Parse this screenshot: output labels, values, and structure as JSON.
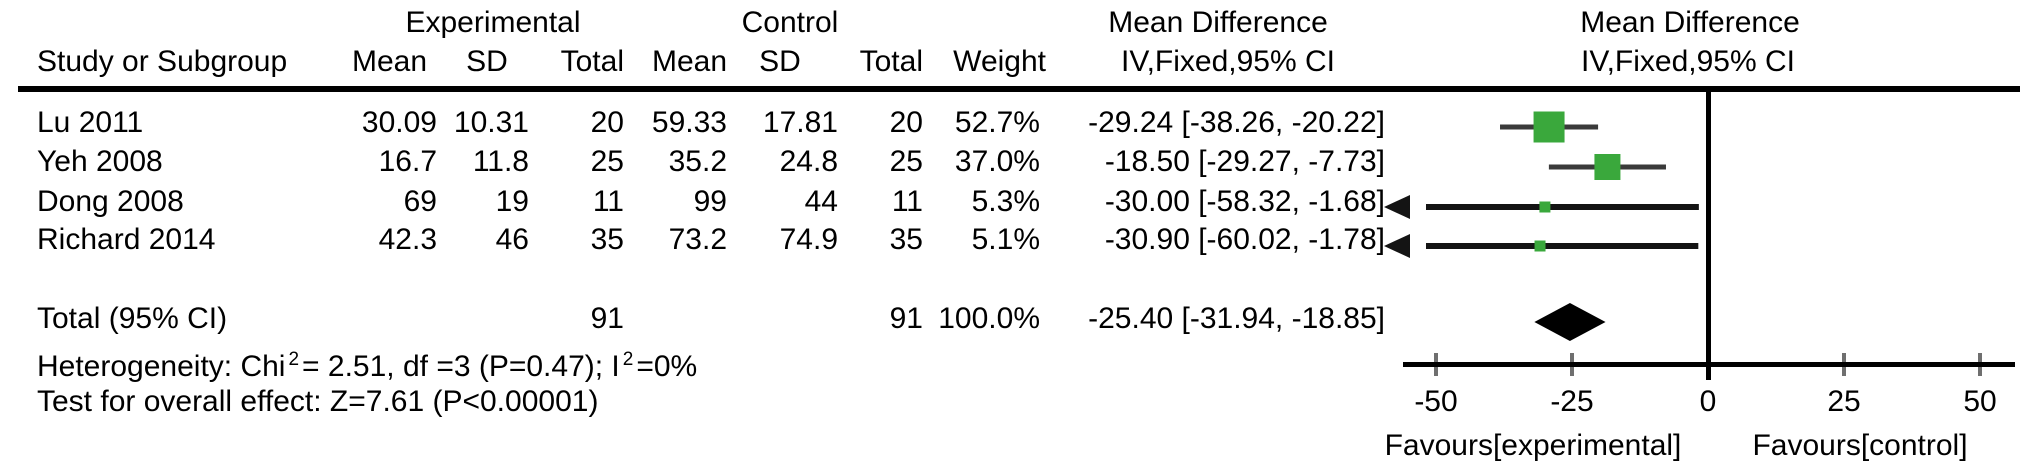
{
  "header": {
    "group_experimental": "Experimental",
    "group_control": "Control",
    "md_left_line1": "Mean Difference",
    "md_left_line2": "IV,Fixed,95% CI",
    "md_right_line1": "Mean Difference",
    "md_right_line2": "IV,Fixed,95% CI",
    "col_study": "Study or Subgroup",
    "col_mean_exp": "Mean",
    "col_sd_exp": "SD",
    "col_total_exp": "Total",
    "col_mean_ctrl": "Mean",
    "col_sd_ctrl": "SD",
    "col_total_ctrl": "Total",
    "col_weight": "Weight"
  },
  "rows": [
    {
      "study": "Lu 2011",
      "mean_e": "30.09",
      "sd_e": "10.31",
      "total_e": "20",
      "mean_c": "59.33",
      "sd_c": "17.81",
      "total_c": "20",
      "weight": "52.7%",
      "md_ci": "-29.24 [-38.26, -20.22]"
    },
    {
      "study": "Yeh 2008",
      "mean_e": "16.7",
      "sd_e": "11.8",
      "total_e": "25",
      "mean_c": "35.2",
      "sd_c": "24.8",
      "total_c": "25",
      "weight": "37.0%",
      "md_ci": "-18.50 [-29.27, -7.73]"
    },
    {
      "study": "Dong 2008",
      "mean_e": "69",
      "sd_e": "19",
      "total_e": "11",
      "mean_c": "99",
      "sd_c": "44",
      "total_c": "11",
      "weight": "5.3%",
      "md_ci": "-30.00 [-58.32, -1.68]"
    },
    {
      "study": "Richard 2014",
      "mean_e": "42.3",
      "sd_e": "46",
      "total_e": "35",
      "mean_c": "73.2",
      "sd_c": "74.9",
      "total_c": "35",
      "weight": "5.1%",
      "md_ci": "-30.90 [-60.02, -1.78]"
    }
  ],
  "total_row": {
    "label": "Total (95% CI)",
    "total_e": "91",
    "total_c": "91",
    "weight": "100.0%",
    "md_ci": "-25.40 [-31.94, -18.85]"
  },
  "heterogeneity": {
    "prefix": "Heterogeneity: Chi",
    "sup1": "2",
    "mid": "= 2.51, df =3 (P=0.47); I",
    "sup2": "2",
    "suffix": "=0%"
  },
  "overall_effect": "Test for overall effect: Z=7.61 (P<0.00001)",
  "axis": {
    "tick_labels": [
      "-50",
      "-25",
      "0",
      "25",
      "50"
    ],
    "favours_left": "Favours[experimental]",
    "favours_right": "Favours[control]"
  },
  "colors": {
    "square_green": "#3aa83c",
    "ci_line": "#3a3a3a",
    "clipped_line": "#141414",
    "diamond": "#000000",
    "tick_gray": "#6f6f6f"
  },
  "chart_data": {
    "type": "forest",
    "effect_measure": "Mean Difference",
    "method": "IV,Fixed,95% CI",
    "x_ticks": [
      -50,
      -25,
      0,
      25,
      50
    ],
    "x_axis_range": [
      -55,
      55
    ],
    "favours_left": "Favours[experimental]",
    "favours_right": "Favours[control]",
    "studies": [
      {
        "name": "Lu 2011",
        "estimate": -29.24,
        "ci_low": -38.26,
        "ci_high": -20.22,
        "weight_pct": 52.7
      },
      {
        "name": "Yeh 2008",
        "estimate": -18.5,
        "ci_low": -29.27,
        "ci_high": -7.73,
        "weight_pct": 37.0
      },
      {
        "name": "Dong 2008",
        "estimate": -30.0,
        "ci_low": -58.32,
        "ci_high": -1.68,
        "weight_pct": 5.3
      },
      {
        "name": "Richard 2014",
        "estimate": -30.9,
        "ci_low": -60.02,
        "ci_high": -1.78,
        "weight_pct": 5.1
      }
    ],
    "total": {
      "label": "Total (95% CI)",
      "estimate": -25.4,
      "ci_low": -31.94,
      "ci_high": -18.85,
      "weight_pct": 100.0
    },
    "heterogeneity": {
      "chi2": 2.51,
      "df": 3,
      "p": 0.47,
      "i2_pct": 0
    },
    "overall_effect": {
      "z": 7.61,
      "p": "<0.00001"
    }
  }
}
